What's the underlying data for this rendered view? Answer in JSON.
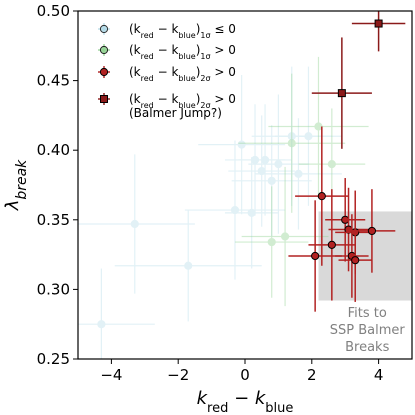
{
  "chart_data": {
    "type": "scatter",
    "title": "",
    "xlabel": "k_red − k_blue",
    "ylabel": "λ_break",
    "xlim": [
      -5,
      5
    ],
    "ylim": [
      0.25,
      0.5
    ],
    "xticks": [
      -4,
      -2,
      0,
      2,
      4
    ],
    "xtick_labels": [
      "−4",
      "−2",
      "0",
      "2",
      "4"
    ],
    "yticks": [
      0.25,
      0.3,
      0.35,
      0.4,
      0.45,
      0.5
    ],
    "ytick_labels": [
      "0.25",
      "0.30",
      "0.35",
      "0.40",
      "0.45",
      "0.50"
    ],
    "grid": false,
    "legend_position": "top-left",
    "region": {
      "x": [
        2.2,
        5.0
      ],
      "y": [
        0.292,
        0.356
      ],
      "color": "#d9d9d9",
      "label_lines": [
        "Fits to",
        "SSP Balmer",
        "Breaks"
      ]
    },
    "series": [
      {
        "name": "(k_red − k_blue)_1σ ≤ 0",
        "legend_lines": [
          "(k_red − k_blue)_1σ ≤ 0"
        ],
        "marker": "circle",
        "color": "#add8e6",
        "alpha": 0.35,
        "points": [
          {
            "x": -4.3,
            "y": 0.275,
            "xerr": 1.6,
            "yerr": 0.04
          },
          {
            "x": -3.3,
            "y": 0.347,
            "xerr": 1.8,
            "yerr": 0.05
          },
          {
            "x": -1.7,
            "y": 0.317,
            "xerr": 2.2,
            "yerr": 0.04
          },
          {
            "x": -0.3,
            "y": 0.357,
            "xerr": 1.5,
            "yerr": 0.05
          },
          {
            "x": -0.1,
            "y": 0.404,
            "xerr": 1.3,
            "yerr": 0.05
          },
          {
            "x": 0.3,
            "y": 0.393,
            "xerr": 0.9,
            "yerr": 0.04
          },
          {
            "x": 0.5,
            "y": 0.385,
            "xerr": 1.0,
            "yerr": 0.04
          },
          {
            "x": 0.6,
            "y": 0.393,
            "xerr": 0.8,
            "yerr": 0.04
          },
          {
            "x": 0.2,
            "y": 0.355,
            "xerr": 0.8,
            "yerr": 0.04
          },
          {
            "x": 0.8,
            "y": 0.378,
            "xerr": 1.2,
            "yerr": 0.04
          },
          {
            "x": 1.0,
            "y": 0.39,
            "xerr": 0.9,
            "yerr": 0.05
          },
          {
            "x": 1.4,
            "y": 0.41,
            "xerr": 1.2,
            "yerr": 0.05
          },
          {
            "x": 1.6,
            "y": 0.383,
            "xerr": 1.3,
            "yerr": 0.04
          },
          {
            "x": 1.9,
            "y": 0.41,
            "xerr": 1.0,
            "yerr": 0.05
          }
        ]
      },
      {
        "name": "(k_red − k_blue)_1σ > 0",
        "legend_lines": [
          "(k_red − k_blue)_1σ > 0"
        ],
        "marker": "circle",
        "color": "#8fd18f",
        "alpha": 0.4,
        "points": [
          {
            "x": 0.8,
            "y": 0.334,
            "xerr": 1.1,
            "yerr": 0.04
          },
          {
            "x": 1.2,
            "y": 0.338,
            "xerr": 1.3,
            "yerr": 0.05
          },
          {
            "x": 1.4,
            "y": 0.405,
            "xerr": 1.6,
            "yerr": 0.05
          },
          {
            "x": 2.2,
            "y": 0.417,
            "xerr": 1.5,
            "yerr": 0.05
          },
          {
            "x": 2.6,
            "y": 0.39,
            "xerr": 1.0,
            "yerr": 0.04
          }
        ]
      },
      {
        "name": "(k_red − k_blue)_2σ > 0",
        "legend_lines": [
          "(k_red − k_blue)_2σ > 0"
        ],
        "marker": "circle",
        "color": "#b22222",
        "alpha": 1.0,
        "points": [
          {
            "x": 2.1,
            "y": 0.324,
            "xerr": 0.8,
            "yerr": 0.04
          },
          {
            "x": 2.3,
            "y": 0.367,
            "xerr": 0.8,
            "yerr": 0.05
          },
          {
            "x": 2.6,
            "y": 0.332,
            "xerr": 0.7,
            "yerr": 0.04
          },
          {
            "x": 3.0,
            "y": 0.35,
            "xerr": 0.6,
            "yerr": 0.03
          },
          {
            "x": 3.1,
            "y": 0.343,
            "xerr": 0.6,
            "yerr": 0.03
          },
          {
            "x": 3.3,
            "y": 0.341,
            "xerr": 0.6,
            "yerr": 0.03
          },
          {
            "x": 3.2,
            "y": 0.324,
            "xerr": 0.5,
            "yerr": 0.03
          },
          {
            "x": 3.3,
            "y": 0.321,
            "xerr": 0.5,
            "yerr": 0.03
          },
          {
            "x": 3.8,
            "y": 0.342,
            "xerr": 0.7,
            "yerr": 0.03
          }
        ]
      },
      {
        "name": "(k_red − k_blue)_2σ > 0 (Balmer Jump?)",
        "legend_lines": [
          "(k_red − k_blue)_2σ > 0",
          "(Balmer Jump?)"
        ],
        "marker": "square",
        "color": "#8b1a1a",
        "alpha": 1.0,
        "points": [
          {
            "x": 4.0,
            "y": 0.491,
            "xerr": 0.8,
            "yerr": 0.02
          },
          {
            "x": 2.9,
            "y": 0.441,
            "xerr": 0.9,
            "yerr": 0.04
          }
        ]
      }
    ]
  }
}
